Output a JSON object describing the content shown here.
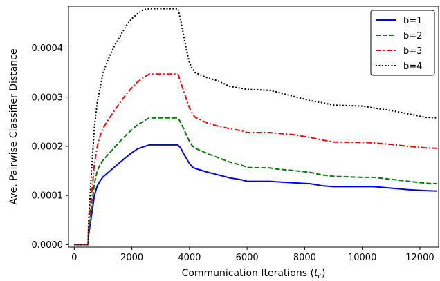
{
  "chart_data": {
    "type": "line",
    "title": "",
    "xlabel": "Communication Iterations (",
    "xlabel_sym": "t",
    "xlabel_sub": "c",
    "xlabel_end": ")",
    "ylabel": "Ave. Pairwise Classifier Distance",
    "xlim": [
      -200,
      12650
    ],
    "ylim": [
      -5e-06,
      0.000485
    ],
    "xticks": [
      0,
      2000,
      4000,
      6000,
      8000,
      10000,
      12000
    ],
    "xtick_labels": [
      "0",
      "2000",
      "4000",
      "6000",
      "8000",
      "10000",
      "12000"
    ],
    "yticks": [
      0,
      0.0001,
      0.0002,
      0.0003,
      0.0004
    ],
    "ytick_labels": [
      "0.0000",
      "0.0001",
      "0.0002",
      "0.0003",
      "0.0004"
    ],
    "grid": false,
    "legend_position": "top-right",
    "series": [
      {
        "name": "b=1",
        "color": "#0000ff",
        "style": "solid",
        "x": [
          0,
          480,
          500,
          600,
          700,
          800,
          900,
          1000,
          1200,
          1400,
          1600,
          1800,
          2000,
          2200,
          2400,
          2600,
          3000,
          3400,
          3600,
          3700,
          3800,
          3900,
          4000,
          4100,
          4200,
          4600,
          5000,
          5400,
          5800,
          6000,
          6800,
          7000,
          7600,
          8200,
          8600,
          9000,
          10000,
          10400,
          11000,
          11600,
          12200,
          12600
        ],
        "y": [
          0,
          0,
          2e-05,
          6e-05,
          0.0001,
          0.00012,
          0.00013,
          0.000138,
          0.000148,
          0.000158,
          0.000168,
          0.000178,
          0.000187,
          0.000195,
          0.000199,
          0.000203,
          0.000203,
          0.000203,
          0.000203,
          0.000196,
          0.000185,
          0.000175,
          0.000165,
          0.000158,
          0.000155,
          0.000148,
          0.000142,
          0.000136,
          0.000132,
          0.000129,
          0.000129,
          0.000128,
          0.000126,
          0.000124,
          0.00012,
          0.000118,
          0.000118,
          0.000118,
          0.000115,
          0.000112,
          0.00011,
          0.000109
        ]
      },
      {
        "name": "b=2",
        "color": "#008000",
        "style": "dashed",
        "x": [
          0,
          480,
          500,
          600,
          700,
          800,
          900,
          1000,
          1200,
          1400,
          1600,
          1800,
          2000,
          2200,
          2400,
          2600,
          3000,
          3400,
          3600,
          3700,
          3800,
          3900,
          4000,
          4100,
          4200,
          4600,
          5000,
          5400,
          5800,
          6000,
          6800,
          7000,
          7600,
          8200,
          8600,
          9000,
          10000,
          10400,
          11000,
          11600,
          12200,
          12600
        ],
        "y": [
          0,
          0,
          2.5e-05,
          7.5e-05,
          0.000125,
          0.00015,
          0.000163,
          0.000172,
          0.000185,
          0.000198,
          0.000211,
          0.000223,
          0.000234,
          0.000244,
          0.000251,
          0.000258,
          0.000258,
          0.000258,
          0.000258,
          0.000248,
          0.000236,
          0.000222,
          0.00021,
          0.000201,
          0.000196,
          0.000186,
          0.000177,
          0.000168,
          0.000162,
          0.000157,
          0.000156,
          0.000154,
          0.000151,
          0.000147,
          0.000142,
          0.000139,
          0.000137,
          0.000137,
          0.000133,
          0.000129,
          0.000125,
          0.000124
        ]
      },
      {
        "name": "b=3",
        "color": "#ff0000",
        "style": "dashdot",
        "x": [
          0,
          480,
          500,
          600,
          700,
          800,
          900,
          1000,
          1200,
          1400,
          1600,
          1800,
          2000,
          2200,
          2400,
          2600,
          3000,
          3400,
          3600,
          3700,
          3800,
          3900,
          4000,
          4100,
          4200,
          4600,
          5000,
          5400,
          5800,
          6000,
          6800,
          7000,
          7600,
          8200,
          8600,
          9000,
          10000,
          10400,
          11000,
          11600,
          12200,
          12600
        ],
        "y": [
          0,
          0,
          3.5e-05,
          0.0001,
          0.000165,
          0.0002,
          0.000222,
          0.000237,
          0.000256,
          0.000273,
          0.00029,
          0.000306,
          0.000319,
          0.000331,
          0.00034,
          0.000347,
          0.000347,
          0.000347,
          0.000347,
          0.00033,
          0.000312,
          0.000295,
          0.000278,
          0.000267,
          0.000259,
          0.000248,
          0.000241,
          0.000236,
          0.000232,
          0.000228,
          0.000228,
          0.000227,
          0.000224,
          0.000218,
          0.000213,
          0.000209,
          0.000208,
          0.000207,
          0.000204,
          0.0002,
          0.000197,
          0.000196
        ]
      },
      {
        "name": "b=4",
        "color": "#000000",
        "style": "dotted",
        "x": [
          0,
          480,
          500,
          600,
          700,
          800,
          900,
          1000,
          1200,
          1400,
          1600,
          1800,
          2000,
          2200,
          2400,
          2600,
          3000,
          3400,
          3600,
          3700,
          3800,
          3900,
          4000,
          4100,
          4200,
          4600,
          5000,
          5400,
          5800,
          6000,
          6800,
          7000,
          7600,
          8200,
          8600,
          9000,
          10000,
          10400,
          11000,
          11600,
          12200,
          12600
        ],
        "y": [
          0,
          0,
          5e-05,
          0.00015,
          0.00024,
          0.00029,
          0.00032,
          0.00035,
          0.00038,
          0.000405,
          0.000425,
          0.000445,
          0.00046,
          0.00047,
          0.000478,
          0.00048,
          0.00048,
          0.00048,
          0.00048,
          0.000455,
          0.000425,
          0.000395,
          0.00037,
          0.000358,
          0.00035,
          0.00034,
          0.000333,
          0.000322,
          0.000318,
          0.000316,
          0.000314,
          0.000311,
          0.000302,
          0.000293,
          0.000289,
          0.000284,
          0.000282,
          0.000278,
          0.000273,
          0.000266,
          0.000259,
          0.000258
        ]
      }
    ]
  }
}
